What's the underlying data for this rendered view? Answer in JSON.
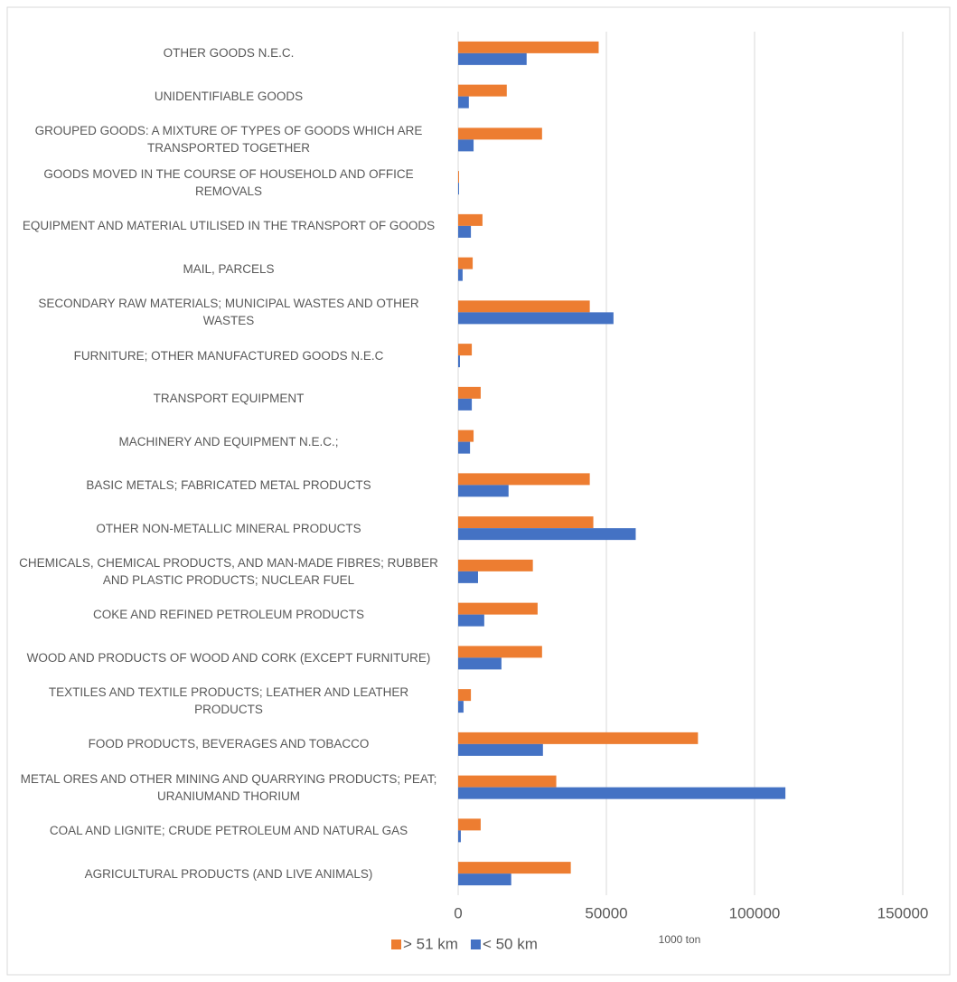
{
  "chart_data": {
    "type": "bar",
    "orientation": "horizontal",
    "x_label": "1000 ton",
    "categories": [
      "OTHER GOODS N.E.C.",
      "UNIDENTIFIABLE GOODS",
      "GROUPED GOODS: A MIXTURE OF TYPES OF GOODS WHICH ARE TRANSPORTED TOGETHER",
      "GOODS MOVED IN THE COURSE OF HOUSEHOLD AND OFFICE REMOVALS",
      "EQUIPMENT AND MATERIAL UTILISED IN THE TRANSPORT OF GOODS",
      "MAIL, PARCELS",
      "SECONDARY RAW MATERIALS; MUNICIPAL WASTES AND OTHER WASTES",
      "FURNITURE; OTHER MANUFACTURED GOODS N.E.C",
      "TRANSPORT EQUIPMENT",
      "MACHINERY AND EQUIPMENT N.E.C.;",
      "BASIC METALS; FABRICATED METAL PRODUCTS",
      "OTHER NON-METALLIC MINERAL PRODUCTS",
      "CHEMICALS, CHEMICAL PRODUCTS, AND MAN-MADE FIBRES; RUBBER AND PLASTIC PRODUCTS; NUCLEAR FUEL",
      "COKE AND REFINED PETROLEUM PRODUCTS",
      "WOOD AND PRODUCTS OF WOOD AND CORK (EXCEPT FURNITURE)",
      "TEXTILES AND TEXTILE PRODUCTS; LEATHER AND LEATHER PRODUCTS",
      "FOOD PRODUCTS, BEVERAGES AND TOBACCO",
      "METAL ORES AND OTHER MINING AND QUARRYING PRODUCTS; PEAT; URANIUMAND THORIUM",
      "COAL AND LIGNITE; CRUDE PETROLEUM AND NATURAL GAS",
      "AGRICULTURAL PRODUCTS (AND LIVE ANIMALS)"
    ],
    "series": [
      {
        "name": "> 51 km",
        "color": "#ed7d31",
        "values": [
          47400,
          16400,
          28300,
          300,
          8200,
          4900,
          44400,
          4600,
          7600,
          5200,
          44400,
          45600,
          25200,
          26800,
          28300,
          4300,
          80900,
          33100,
          7600,
          38000
        ]
      },
      {
        "name": "< 50 km",
        "color": "#4472c4",
        "values": [
          23100,
          3600,
          5200,
          300,
          4300,
          1500,
          52400,
          600,
          4600,
          4000,
          17000,
          59900,
          6700,
          8800,
          14600,
          1800,
          28600,
          110400,
          900,
          17900
        ]
      }
    ],
    "xlim": [
      0,
      150000
    ],
    "xticks": [
      0,
      50000,
      100000,
      150000
    ],
    "grid": true
  }
}
